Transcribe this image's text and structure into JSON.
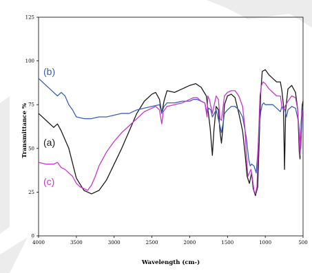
{
  "chart_data": {
    "type": "line",
    "title": "",
    "xlabel": "Wavelength  (cm-)",
    "ylabel": "Transmittance %",
    "xlim": [
      4000,
      500
    ],
    "ylim": [
      0,
      125
    ],
    "x_reversed": true,
    "xticks": [
      "4000",
      "3500",
      "3000",
      "2500",
      "2000",
      "1500",
      "1000",
      "500"
    ],
    "yticks": [
      "0",
      "25",
      "50",
      "75",
      "100",
      "125"
    ],
    "grid": false,
    "series": [
      {
        "name": "(a)",
        "color": "#1a1a1a",
        "points": [
          [
            4000,
            70
          ],
          [
            3900,
            66
          ],
          [
            3800,
            62
          ],
          [
            3750,
            64
          ],
          [
            3700,
            60
          ],
          [
            3600,
            50
          ],
          [
            3500,
            33
          ],
          [
            3400,
            26
          ],
          [
            3300,
            24
          ],
          [
            3200,
            26
          ],
          [
            3100,
            32
          ],
          [
            3000,
            41
          ],
          [
            2900,
            50
          ],
          [
            2800,
            60
          ],
          [
            2700,
            70
          ],
          [
            2600,
            77
          ],
          [
            2500,
            81
          ],
          [
            2450,
            82
          ],
          [
            2400,
            78
          ],
          [
            2370,
            70
          ],
          [
            2340,
            77
          ],
          [
            2300,
            83
          ],
          [
            2200,
            82
          ],
          [
            2100,
            84
          ],
          [
            2000,
            86
          ],
          [
            1920,
            87
          ],
          [
            1850,
            85
          ],
          [
            1780,
            80
          ],
          [
            1730,
            62
          ],
          [
            1700,
            46
          ],
          [
            1680,
            60
          ],
          [
            1650,
            74
          ],
          [
            1620,
            72
          ],
          [
            1600,
            60
          ],
          [
            1580,
            53
          ],
          [
            1560,
            62
          ],
          [
            1540,
            75
          ],
          [
            1500,
            80
          ],
          [
            1450,
            81
          ],
          [
            1400,
            79
          ],
          [
            1350,
            70
          ],
          [
            1300,
            60
          ],
          [
            1270,
            48
          ],
          [
            1240,
            34
          ],
          [
            1210,
            30
          ],
          [
            1180,
            36
          ],
          [
            1160,
            27
          ],
          [
            1130,
            23
          ],
          [
            1100,
            28
          ],
          [
            1080,
            55
          ],
          [
            1060,
            82
          ],
          [
            1040,
            94
          ],
          [
            1000,
            95
          ],
          [
            950,
            92
          ],
          [
            900,
            90
          ],
          [
            850,
            88
          ],
          [
            800,
            88
          ],
          [
            780,
            83
          ],
          [
            760,
            75
          ],
          [
            745,
            38
          ],
          [
            730,
            72
          ],
          [
            700,
            84
          ],
          [
            650,
            86
          ],
          [
            600,
            82
          ],
          [
            570,
            72
          ],
          [
            550,
            48
          ],
          [
            540,
            44
          ],
          [
            525,
            65
          ],
          [
            510,
            75
          ],
          [
            500,
            77
          ]
        ]
      },
      {
        "name": "(b)",
        "color": "#3b5fb3",
        "points": [
          [
            4000,
            90
          ],
          [
            3950,
            88
          ],
          [
            3900,
            86
          ],
          [
            3850,
            84
          ],
          [
            3800,
            82
          ],
          [
            3750,
            80
          ],
          [
            3700,
            82
          ],
          [
            3650,
            80
          ],
          [
            3600,
            75
          ],
          [
            3550,
            72
          ],
          [
            3500,
            68
          ],
          [
            3400,
            67
          ],
          [
            3300,
            67
          ],
          [
            3200,
            68
          ],
          [
            3100,
            68
          ],
          [
            3000,
            69
          ],
          [
            2900,
            70
          ],
          [
            2800,
            70
          ],
          [
            2700,
            72
          ],
          [
            2600,
            73
          ],
          [
            2500,
            74
          ],
          [
            2400,
            75
          ],
          [
            2370,
            70
          ],
          [
            2340,
            74
          ],
          [
            2300,
            76
          ],
          [
            2200,
            76
          ],
          [
            2100,
            77
          ],
          [
            2000,
            77
          ],
          [
            1950,
            78
          ],
          [
            1900,
            78
          ],
          [
            1850,
            77
          ],
          [
            1800,
            76
          ],
          [
            1770,
            70
          ],
          [
            1750,
            73
          ],
          [
            1720,
            72
          ],
          [
            1700,
            68
          ],
          [
            1650,
            72
          ],
          [
            1600,
            63
          ],
          [
            1580,
            59
          ],
          [
            1560,
            64
          ],
          [
            1540,
            70
          ],
          [
            1500,
            72
          ],
          [
            1450,
            74
          ],
          [
            1400,
            74
          ],
          [
            1350,
            72
          ],
          [
            1300,
            68
          ],
          [
            1250,
            56
          ],
          [
            1220,
            44
          ],
          [
            1200,
            40
          ],
          [
            1180,
            41
          ],
          [
            1150,
            40
          ],
          [
            1120,
            36
          ],
          [
            1100,
            47
          ],
          [
            1080,
            62
          ],
          [
            1060,
            71
          ],
          [
            1040,
            75
          ],
          [
            1020,
            76
          ],
          [
            1000,
            75
          ],
          [
            950,
            75
          ],
          [
            900,
            75
          ],
          [
            850,
            73
          ],
          [
            800,
            71
          ],
          [
            780,
            74
          ],
          [
            760,
            73
          ],
          [
            740,
            72
          ],
          [
            720,
            68
          ],
          [
            700,
            72
          ],
          [
            650,
            74
          ],
          [
            600,
            73
          ],
          [
            560,
            65
          ],
          [
            540,
            55
          ],
          [
            530,
            50
          ],
          [
            520,
            60
          ],
          [
            510,
            70
          ],
          [
            500,
            74
          ]
        ]
      },
      {
        "name": "(c)",
        "color": "#cc33cc",
        "points": [
          [
            4000,
            42
          ],
          [
            3900,
            41
          ],
          [
            3800,
            41
          ],
          [
            3750,
            42
          ],
          [
            3700,
            39
          ],
          [
            3650,
            38
          ],
          [
            3600,
            36
          ],
          [
            3550,
            34
          ],
          [
            3500,
            30
          ],
          [
            3450,
            28
          ],
          [
            3400,
            27
          ],
          [
            3350,
            26
          ],
          [
            3300,
            29
          ],
          [
            3250,
            34
          ],
          [
            3200,
            40
          ],
          [
            3100,
            48
          ],
          [
            3000,
            54
          ],
          [
            2900,
            59
          ],
          [
            2800,
            63
          ],
          [
            2700,
            67
          ],
          [
            2600,
            71
          ],
          [
            2500,
            73
          ],
          [
            2450,
            74
          ],
          [
            2400,
            72
          ],
          [
            2370,
            64
          ],
          [
            2350,
            71
          ],
          [
            2300,
            74
          ],
          [
            2200,
            75
          ],
          [
            2100,
            76
          ],
          [
            2000,
            78
          ],
          [
            1950,
            79
          ],
          [
            1900,
            79
          ],
          [
            1850,
            77
          ],
          [
            1800,
            76
          ],
          [
            1770,
            68
          ],
          [
            1760,
            80
          ],
          [
            1740,
            78
          ],
          [
            1720,
            74
          ],
          [
            1700,
            70
          ],
          [
            1680,
            74
          ],
          [
            1650,
            80
          ],
          [
            1620,
            78
          ],
          [
            1600,
            67
          ],
          [
            1580,
            66
          ],
          [
            1560,
            73
          ],
          [
            1540,
            80
          ],
          [
            1500,
            82
          ],
          [
            1450,
            83
          ],
          [
            1400,
            83
          ],
          [
            1350,
            80
          ],
          [
            1300,
            74
          ],
          [
            1270,
            62
          ],
          [
            1250,
            46
          ],
          [
            1230,
            34
          ],
          [
            1210,
            36
          ],
          [
            1190,
            38
          ],
          [
            1170,
            33
          ],
          [
            1150,
            26
          ],
          [
            1130,
            24
          ],
          [
            1110,
            28
          ],
          [
            1090,
            56
          ],
          [
            1070,
            80
          ],
          [
            1050,
            86
          ],
          [
            1030,
            88
          ],
          [
            1000,
            87
          ],
          [
            950,
            84
          ],
          [
            900,
            82
          ],
          [
            850,
            80
          ],
          [
            800,
            80
          ],
          [
            780,
            74
          ],
          [
            760,
            72
          ],
          [
            740,
            74
          ],
          [
            700,
            77
          ],
          [
            650,
            80
          ],
          [
            600,
            79
          ],
          [
            570,
            72
          ],
          [
            550,
            55
          ],
          [
            540,
            46
          ],
          [
            530,
            58
          ],
          [
            515,
            70
          ],
          [
            500,
            72
          ]
        ]
      }
    ]
  }
}
